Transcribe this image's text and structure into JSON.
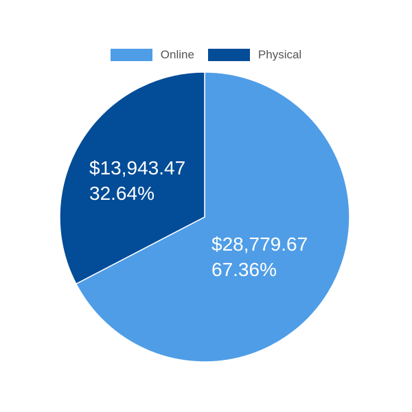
{
  "chart_data": {
    "type": "pie",
    "title": "",
    "legend_position": "top",
    "categories": [
      "Online",
      "Physical"
    ],
    "values": [
      28779.67,
      13943.47
    ],
    "percentages": [
      67.36,
      32.64
    ],
    "labels": [
      {
        "value": "$28,779.67",
        "percent": "67.36%"
      },
      {
        "value": "$13,943.47",
        "percent": "32.64%"
      }
    ],
    "colors": [
      "#4f9de7",
      "#034c97"
    ]
  },
  "legend": {
    "items": [
      {
        "label": "Online",
        "color": "#4f9de7"
      },
      {
        "label": "Physical",
        "color": "#034c97"
      }
    ]
  }
}
